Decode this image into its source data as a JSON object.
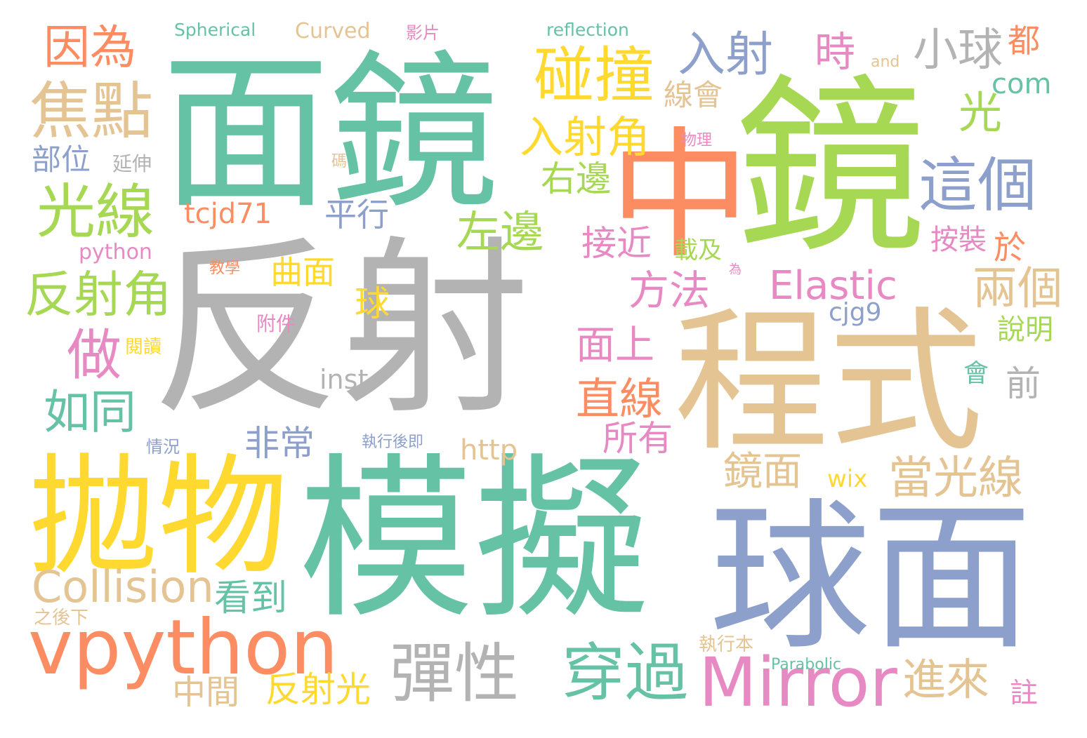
{
  "cloud": {
    "palette": {
      "green": "#66c2a5",
      "orange": "#fc8d62",
      "blue": "#8da0cb",
      "pink": "#e78ac3",
      "lime": "#a6d854",
      "yellow": "#ffd92f",
      "tan": "#e5c494",
      "gray": "#b3b3b3"
    },
    "words": [
      {
        "text": "面鏡",
        "color": "green"
      },
      {
        "text": "反射",
        "color": "gray"
      },
      {
        "text": "中",
        "color": "orange"
      },
      {
        "text": "鏡",
        "color": "lime"
      },
      {
        "text": "程式",
        "color": "tan"
      },
      {
        "text": "模擬",
        "color": "green"
      },
      {
        "text": "球面",
        "color": "blue"
      },
      {
        "text": "拋物",
        "color": "yellow"
      },
      {
        "text": "vpython",
        "color": "orange"
      },
      {
        "text": "Mirror",
        "color": "pink"
      },
      {
        "text": "彈性",
        "color": "gray"
      },
      {
        "text": "穿過",
        "color": "green"
      },
      {
        "text": "碰撞",
        "color": "yellow"
      },
      {
        "text": "入射",
        "color": "blue"
      },
      {
        "text": "小球",
        "color": "gray"
      },
      {
        "text": "這個",
        "color": "blue"
      },
      {
        "text": "焦點",
        "color": "tan"
      },
      {
        "text": "因為",
        "color": "orange"
      },
      {
        "text": "光線",
        "color": "lime"
      },
      {
        "text": "反射角",
        "color": "lime"
      },
      {
        "text": "做",
        "color": "pink"
      },
      {
        "text": "如同",
        "color": "green"
      },
      {
        "text": "Collision",
        "color": "tan"
      },
      {
        "text": "入射角",
        "color": "yellow"
      },
      {
        "text": "右邊",
        "color": "lime"
      },
      {
        "text": "左邊",
        "color": "lime"
      },
      {
        "text": "時",
        "color": "pink"
      },
      {
        "text": "光",
        "color": "lime"
      },
      {
        "text": "都",
        "color": "orange"
      },
      {
        "text": "Elastic",
        "color": "pink"
      },
      {
        "text": "方法",
        "color": "pink"
      },
      {
        "text": "兩個",
        "color": "tan"
      },
      {
        "text": "直線",
        "color": "orange"
      },
      {
        "text": "面上",
        "color": "pink"
      },
      {
        "text": "當光線",
        "color": "tan"
      },
      {
        "text": "進來",
        "color": "tan"
      },
      {
        "text": "鏡面",
        "color": "tan"
      },
      {
        "text": "看到",
        "color": "green"
      },
      {
        "text": "反射光",
        "color": "yellow"
      },
      {
        "text": "中間",
        "color": "tan"
      },
      {
        "text": "非常",
        "color": "blue"
      },
      {
        "text": "平行",
        "color": "blue"
      },
      {
        "text": "接近",
        "color": "pink"
      },
      {
        "text": "所有",
        "color": "pink"
      },
      {
        "text": "前",
        "color": "gray"
      },
      {
        "text": "會",
        "color": "green"
      },
      {
        "text": "於",
        "color": "orange"
      },
      {
        "text": "按裝",
        "color": "pink"
      },
      {
        "text": "線會",
        "color": "tan"
      },
      {
        "text": "com",
        "color": "green"
      },
      {
        "text": "tcjd71",
        "color": "orange"
      },
      {
        "text": "曲面",
        "color": "yellow"
      },
      {
        "text": "球",
        "color": "yellow"
      },
      {
        "text": "部位",
        "color": "blue"
      },
      {
        "text": "http",
        "color": "tan"
      },
      {
        "text": "inst",
        "color": "gray"
      },
      {
        "text": "cjg9",
        "color": "blue"
      },
      {
        "text": "wix",
        "color": "yellow"
      },
      {
        "text": "說明",
        "color": "lime"
      },
      {
        "text": "註",
        "color": "pink"
      },
      {
        "text": "載及",
        "color": "lime"
      },
      {
        "text": "python",
        "color": "pink"
      },
      {
        "text": "延伸",
        "color": "gray"
      },
      {
        "text": "Spherical",
        "color": "green"
      },
      {
        "text": "Curved",
        "color": "tan"
      },
      {
        "text": "影片",
        "color": "pink"
      },
      {
        "text": "reflection",
        "color": "green"
      },
      {
        "text": "and",
        "color": "tan"
      },
      {
        "text": "物理",
        "color": "pink"
      },
      {
        "text": "碼",
        "color": "tan"
      },
      {
        "text": "教學",
        "color": "orange"
      },
      {
        "text": "為",
        "color": "pink"
      },
      {
        "text": "附件",
        "color": "pink"
      },
      {
        "text": "閱讀",
        "color": "yellow"
      },
      {
        "text": "情況",
        "color": "blue"
      },
      {
        "text": "執行後即",
        "color": "blue"
      },
      {
        "text": "之後下",
        "color": "tan"
      },
      {
        "text": "執行本",
        "color": "tan"
      },
      {
        "text": "Parabolic",
        "color": "green"
      }
    ]
  }
}
